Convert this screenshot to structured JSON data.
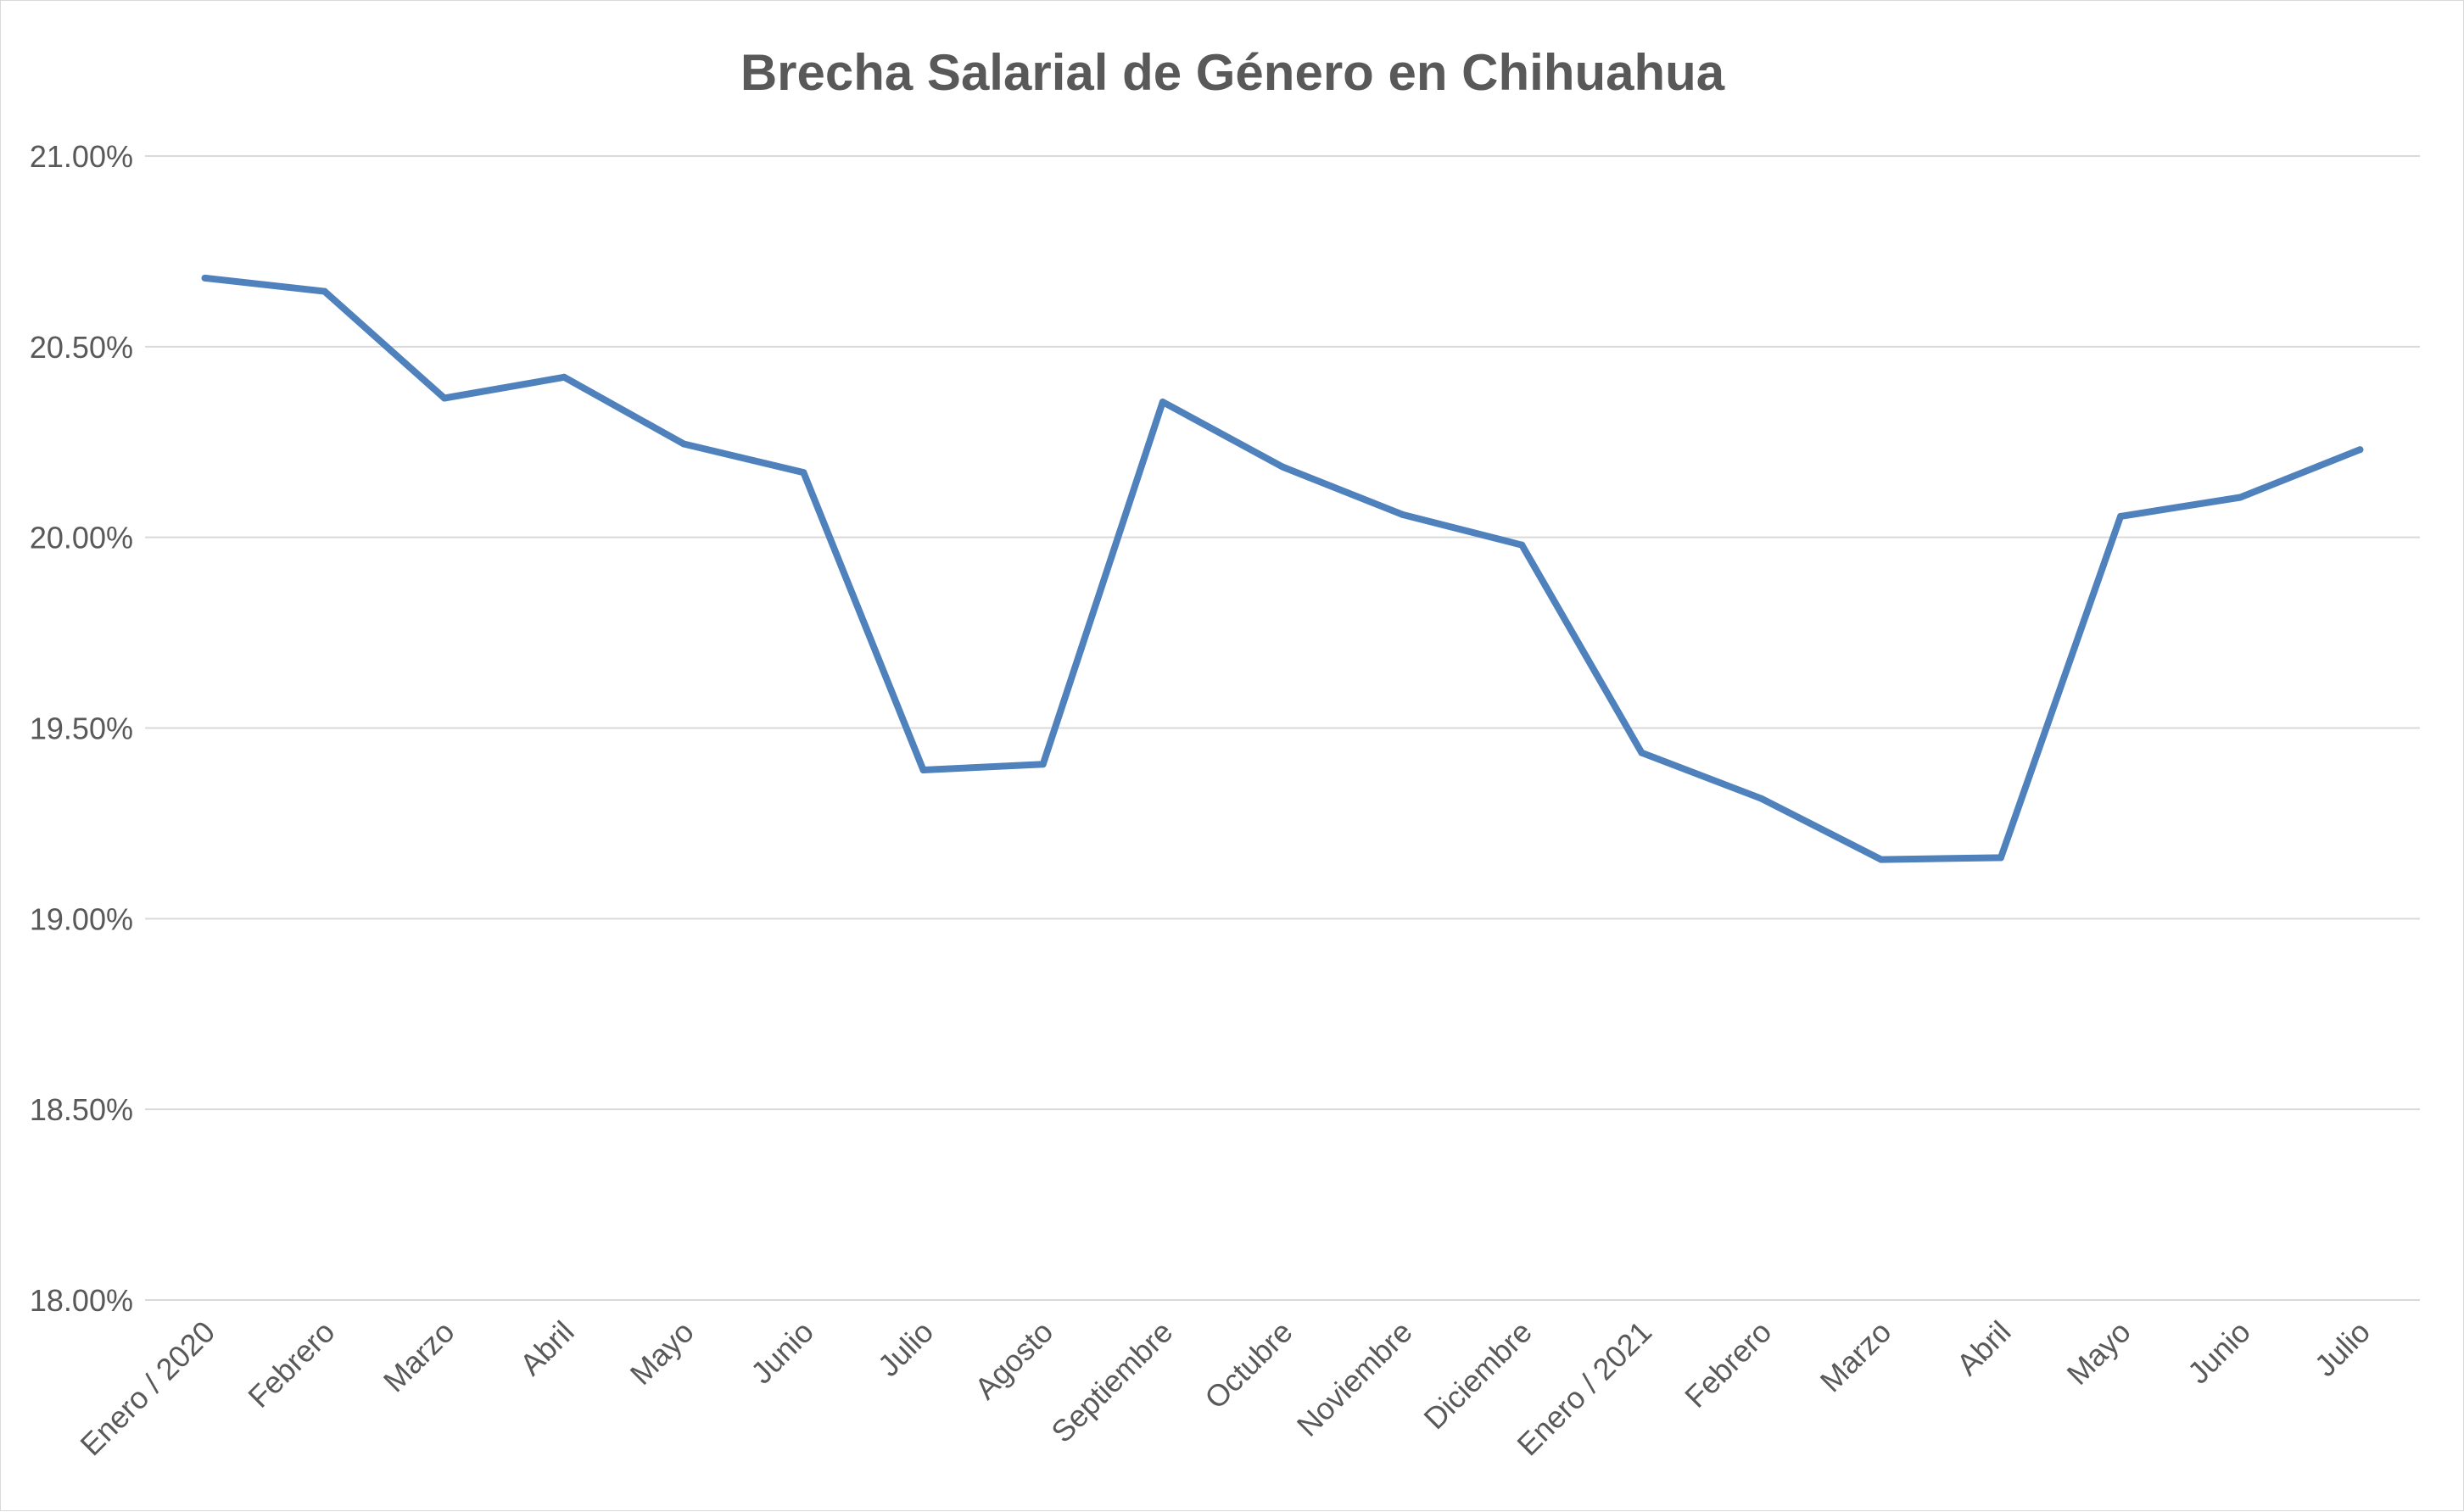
{
  "chart_data": {
    "type": "line",
    "title": "Brecha Salarial de Género en Chihuahua",
    "xlabel": "",
    "ylabel": "",
    "categories": [
      "Enero / 2020",
      "Febrero",
      "Marzo",
      "Abril",
      "Mayo",
      "Junio",
      "Julio",
      "Agosto",
      "Septiembre",
      "Octubre",
      "Noviembre",
      "Diciembre",
      "Enero / 2021",
      "Febrero",
      "Marzo",
      "Abril",
      "Mayo",
      "Junio",
      "Julio"
    ],
    "series": [
      {
        "values": [
          20.68,
          20.645,
          20.365,
          20.42,
          20.245,
          20.17,
          19.39,
          19.405,
          20.355,
          20.185,
          20.06,
          19.98,
          19.435,
          19.315,
          19.155,
          19.16,
          20.055,
          20.105,
          20.23
        ],
        "color": "#4f81bd"
      }
    ],
    "yticks": [
      "18.00%",
      "18.50%",
      "19.00%",
      "19.50%",
      "20.00%",
      "20.50%",
      "21.00%"
    ],
    "ylim": [
      18.0,
      21.0
    ],
    "grid": true,
    "legend": "none"
  }
}
